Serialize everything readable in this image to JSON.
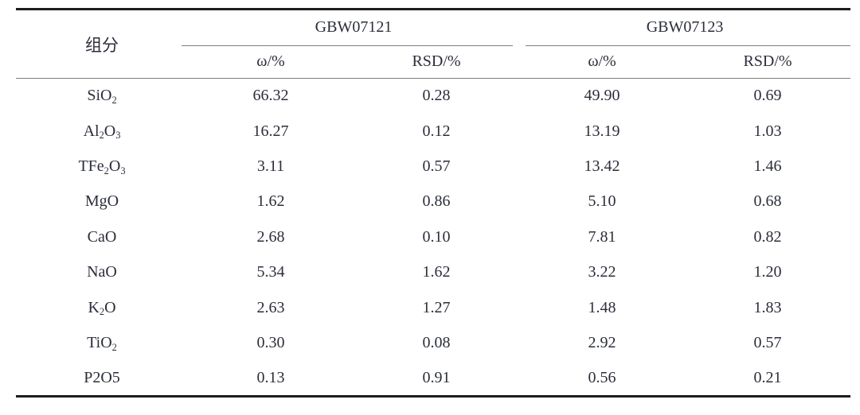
{
  "colors": {
    "text": "#2b2e3a",
    "thick_rule": "#1c1c1c",
    "thin_rule": "#7e7e7e",
    "background": "#ffffff"
  },
  "table": {
    "component_header": "组分",
    "groups": [
      {
        "label": "GBW07121",
        "subheaders": [
          "ω/%",
          "RSD/%"
        ]
      },
      {
        "label": "GBW07123",
        "subheaders": [
          "ω/%",
          "RSD/%"
        ]
      }
    ],
    "rows": [
      {
        "formula": [
          {
            "t": "SiO"
          },
          {
            "t": "2",
            "sub": true
          }
        ],
        "values": [
          "66.32",
          "0.28",
          "49.90",
          "0.69"
        ]
      },
      {
        "formula": [
          {
            "t": "Al"
          },
          {
            "t": "2",
            "sub": true
          },
          {
            "t": "O"
          },
          {
            "t": "3",
            "sub": true
          }
        ],
        "values": [
          "16.27",
          "0.12",
          "13.19",
          "1.03"
        ]
      },
      {
        "formula": [
          {
            "t": "TFe"
          },
          {
            "t": "2",
            "sub": true
          },
          {
            "t": "O"
          },
          {
            "t": "3",
            "sub": true
          }
        ],
        "values": [
          "3.11",
          "0.57",
          "13.42",
          "1.46"
        ]
      },
      {
        "formula": [
          {
            "t": "MgO"
          }
        ],
        "values": [
          "1.62",
          "0.86",
          "5.10",
          "0.68"
        ]
      },
      {
        "formula": [
          {
            "t": "CaO"
          }
        ],
        "values": [
          "2.68",
          "0.10",
          "7.81",
          "0.82"
        ]
      },
      {
        "formula": [
          {
            "t": "NaO"
          }
        ],
        "values": [
          "5.34",
          "1.62",
          "3.22",
          "1.20"
        ]
      },
      {
        "formula": [
          {
            "t": "K"
          },
          {
            "t": "2",
            "sub": true
          },
          {
            "t": "O"
          }
        ],
        "values": [
          "2.63",
          "1.27",
          "1.48",
          "1.83"
        ]
      },
      {
        "formula": [
          {
            "t": "TiO"
          },
          {
            "t": "2",
            "sub": true
          }
        ],
        "values": [
          "0.30",
          "0.08",
          "2.92",
          "0.57"
        ]
      },
      {
        "formula": [
          {
            "t": "P2O5"
          }
        ],
        "values": [
          "0.13",
          "0.91",
          "0.56",
          "0.21"
        ]
      }
    ]
  },
  "chart_data": {
    "type": "table",
    "columns": [
      "组分",
      "GBW07121 ω/%",
      "GBW07121 RSD/%",
      "GBW07123 ω/%",
      "GBW07123 RSD/%"
    ],
    "rows": [
      [
        "SiO₂",
        66.32,
        0.28,
        49.9,
        0.69
      ],
      [
        "Al₂O₃",
        16.27,
        0.12,
        13.19,
        1.03
      ],
      [
        "TFe₂O₃",
        3.11,
        0.57,
        13.42,
        1.46
      ],
      [
        "MgO",
        1.62,
        0.86,
        5.1,
        0.68
      ],
      [
        "CaO",
        2.68,
        0.1,
        7.81,
        0.82
      ],
      [
        "NaO",
        5.34,
        1.62,
        3.22,
        1.2
      ],
      [
        "K₂O",
        2.63,
        1.27,
        1.48,
        1.83
      ],
      [
        "TiO₂",
        0.3,
        0.08,
        2.92,
        0.57
      ],
      [
        "P2O5",
        0.13,
        0.91,
        0.56,
        0.21
      ]
    ]
  }
}
